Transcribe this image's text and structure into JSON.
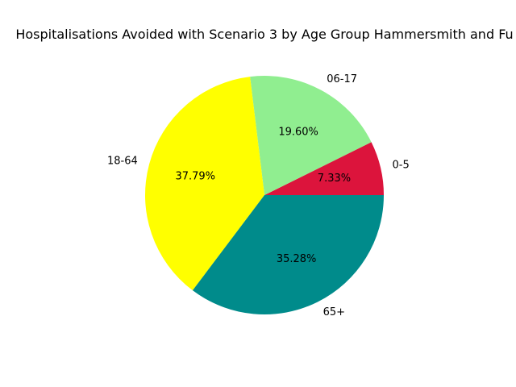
{
  "chart_data": {
    "type": "pie",
    "title": "Hospitalisations Avoided with Scenario 3 by Age Group Hammersmith and Fu",
    "slices": [
      {
        "label": "0-5",
        "value": 7.33,
        "pct_label": "7.33%",
        "color": "#dc143c"
      },
      {
        "label": "06-17",
        "value": 19.6,
        "pct_label": "19.60%",
        "color": "#90ee90"
      },
      {
        "label": "18-64",
        "value": 37.79,
        "pct_label": "37.79%",
        "color": "#ffff00"
      },
      {
        "label": "65+",
        "value": 35.28,
        "pct_label": "35.28%",
        "color": "#008b8b"
      }
    ],
    "start_angle_deg": 0,
    "direction": "counterclockwise",
    "legend": "none"
  }
}
